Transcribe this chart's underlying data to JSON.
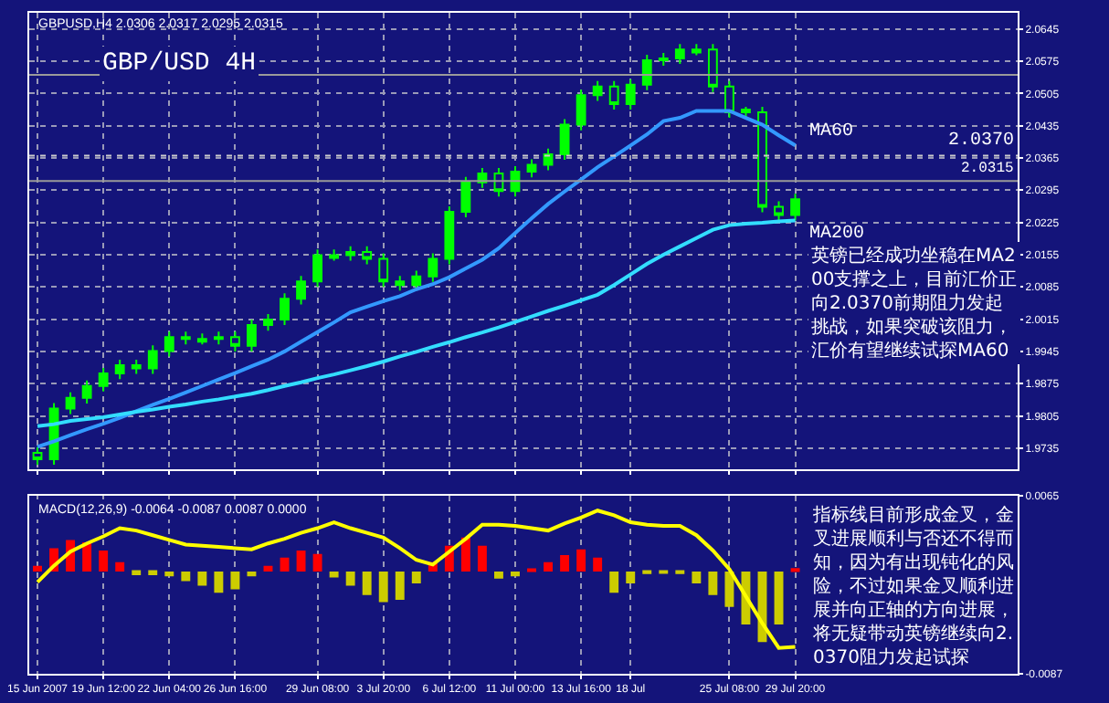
{
  "chart_data": [
    {
      "type": "candlestick",
      "title": "GBP/USD 4H",
      "tick_labels": "y",
      "grid": true,
      "color": "#00ff00",
      "categories": [
        null,
        null,
        null,
        null,
        null,
        null,
        null,
        null,
        null,
        null,
        null,
        null,
        null,
        null,
        null,
        null,
        null,
        null,
        null,
        null,
        null,
        null,
        null,
        null,
        null,
        null,
        null,
        null,
        null,
        null,
        null,
        null,
        null,
        null,
        null,
        null,
        null,
        null,
        null,
        null,
        null,
        null,
        null,
        null,
        null,
        null,
        null
      ],
      "ohlc": [
        [
          1.9725,
          1.9737,
          1.9699,
          1.9711
        ],
        [
          1.9711,
          1.9833,
          1.9699,
          1.9821
        ],
        [
          1.9821,
          1.9856,
          1.9809,
          1.9844
        ],
        [
          1.9844,
          1.9882,
          1.9832,
          1.987
        ],
        [
          1.987,
          1.9909,
          1.9858,
          1.9897
        ],
        [
          1.9897,
          1.9927,
          1.9885,
          1.9915
        ],
        [
          1.9915,
          1.9927,
          1.9896,
          1.9908
        ],
        [
          1.9908,
          1.9958,
          1.9896,
          1.9946
        ],
        [
          1.9946,
          1.9988,
          1.9934,
          1.9976
        ],
        [
          1.9976,
          1.9988,
          1.996,
          1.9972
        ],
        [
          1.9966,
          1.9984,
          1.996,
          1.9972
        ],
        [
          1.9972,
          1.9988,
          1.996,
          1.9976
        ],
        [
          1.9976,
          1.9988,
          1.9945,
          1.9957
        ],
        [
          1.9957,
          2.0014,
          1.9945,
          2.0002
        ],
        [
          2.0002,
          2.0026,
          1.999,
          2.0014
        ],
        [
          2.0014,
          2.0071,
          2.0002,
          2.0059
        ],
        [
          2.0059,
          2.0109,
          2.0047,
          2.0097
        ],
        [
          2.0097,
          2.0166,
          2.0085,
          2.0154
        ],
        [
          2.0148,
          2.0166,
          2.0142,
          2.0154
        ],
        [
          2.0154,
          2.0173,
          2.0142,
          2.0161
        ],
        [
          2.0161,
          2.0173,
          2.0134,
          2.0146
        ],
        [
          2.0146,
          2.0158,
          2.0085,
          2.0097
        ],
        [
          2.0097,
          2.0109,
          2.0077,
          2.0089
        ],
        [
          2.0089,
          2.012,
          2.0077,
          2.0108
        ],
        [
          2.0108,
          2.0158,
          2.0096,
          2.0146
        ],
        [
          2.0146,
          2.026,
          2.0134,
          2.0248
        ],
        [
          2.0248,
          2.0324,
          2.0236,
          2.0312
        ],
        [
          2.0312,
          2.0343,
          2.03,
          2.0331
        ],
        [
          2.0331,
          2.0343,
          2.0281,
          2.0293
        ],
        [
          2.0293,
          2.0347,
          2.0281,
          2.0335
        ],
        [
          2.0335,
          2.0362,
          2.0323,
          2.035
        ],
        [
          2.035,
          2.0385,
          2.0338,
          2.0373
        ],
        [
          2.0373,
          2.0449,
          2.0361,
          2.0437
        ],
        [
          2.0437,
          2.0513,
          2.0425,
          2.0501
        ],
        [
          2.0501,
          2.0532,
          2.0489,
          2.052
        ],
        [
          2.052,
          2.0532,
          2.047,
          2.0482
        ],
        [
          2.0482,
          2.0536,
          2.047,
          2.0524
        ],
        [
          2.0524,
          2.0589,
          2.0512,
          2.0577
        ],
        [
          2.0577,
          2.0593,
          2.0565,
          2.0581
        ],
        [
          2.0581,
          2.0612,
          2.0569,
          2.06
        ],
        [
          2.0594,
          2.0612,
          2.0588,
          2.06
        ],
        [
          2.06,
          2.0612,
          2.0508,
          2.052
        ],
        [
          2.052,
          2.0532,
          2.0452,
          2.0464
        ],
        [
          2.047,
          2.0476,
          2.0452,
          2.0464
        ],
        [
          2.0464,
          2.0476,
          2.0247,
          2.0259
        ],
        [
          2.0259,
          2.0271,
          2.0229,
          2.0241
        ],
        [
          2.0241,
          2.0287,
          2.0229,
          2.0275
        ]
      ],
      "series": [
        {
          "type": "line",
          "name": "MA60",
          "color": "#3399ff",
          "values": [
            1.9738,
            1.975,
            1.9763,
            1.9776,
            1.9788,
            1.9801,
            1.9815,
            1.9829,
            1.9842,
            1.9856,
            1.987,
            1.9884,
            1.9898,
            1.9913,
            1.9927,
            1.9945,
            1.9966,
            1.9987,
            2.0008,
            2.003,
            2.0042,
            2.0054,
            2.0065,
            2.008,
            2.0091,
            2.0106,
            2.0125,
            2.0144,
            2.0169,
            2.0202,
            2.0234,
            2.0265,
            2.0292,
            2.0318,
            2.0345,
            2.0368,
            2.0392,
            2.0416,
            2.0445,
            2.0452,
            2.0467,
            2.0467,
            2.0467,
            2.0452,
            2.0437,
            2.0414,
            2.0392
          ]
        },
        {
          "type": "line",
          "name": "MA200",
          "color": "#33ddff",
          "values": [
            1.9783,
            1.9787,
            1.9794,
            1.9798,
            1.9802,
            1.9808,
            1.9814,
            1.9819,
            1.9825,
            1.983,
            1.9836,
            1.9841,
            1.9847,
            1.9853,
            1.9861,
            1.987,
            1.9878,
            1.9887,
            1.9895,
            1.9904,
            1.9913,
            1.9923,
            1.9934,
            1.9944,
            1.9955,
            1.9965,
            1.9976,
            1.9986,
            1.9997,
            2.0009,
            2.0021,
            2.0033,
            2.0044,
            2.0056,
            2.0068,
            2.0089,
            2.0112,
            2.0135,
            2.0155,
            2.0173,
            2.0191,
            2.0209,
            2.0219,
            2.0222,
            2.0224,
            2.0227,
            2.0229
          ]
        }
      ],
      "ylim": [
        1.969,
        2.068
      ],
      "yticks": [
        1.9735,
        1.9805,
        1.9875,
        1.9945,
        2.0015,
        2.0085,
        2.0155,
        2.0225,
        2.0295,
        2.0365,
        2.0435,
        2.0505,
        2.0575,
        2.0645
      ],
      "ref_lines": [
        {
          "axis": "y",
          "value": 2.037,
          "label": "2.0370",
          "color": "#cccccc",
          "line_style": "dotted"
        },
        {
          "axis": "y",
          "value": 2.0315,
          "label": "2.0315",
          "color": "#9a9a9a",
          "line_style": "solid"
        },
        {
          "axis": "y",
          "value": 2.0545,
          "color": "#9a9a9a",
          "line_style": "solid"
        }
      ],
      "annotations": [
        "GBPUSD,H4 2.0306 2.0317 2.0295 2.0315",
        "英镑已经成功坐稳在MA200支撑之上，目前汇价正向2.0370前期阻力发起挑战，如果突破该阻力，汇价有望继续试探MA60",
        "指标线目前形成金叉，金叉进展顺利与否还不得而知，因为有出现钝化的风险，不过如果金叉顺利进展并向正轴的方向进展，将无疑带动英镑继续向2.0370阻力发起试探"
      ]
    },
    {
      "type": "bar",
      "title": "MACD(12,26,9) -0.0064 -0.0087 0.0087 0.0000",
      "grid": true,
      "categories": [
        "15 Jun 2007",
        null,
        null,
        null,
        "19 Jun 12:00",
        null,
        null,
        null,
        "22 Jun 04:00",
        null,
        null,
        null,
        "26 Jun 16:00",
        null,
        null,
        null,
        null,
        "29 Jun 08:00",
        null,
        null,
        null,
        "3 Jul 20:00",
        null,
        null,
        null,
        "6 Jul 12:00",
        null,
        null,
        null,
        "11 Jul 00:00",
        null,
        null,
        null,
        "13 Jul 16:00",
        null,
        null,
        "18 Jul",
        null,
        null,
        null,
        null,
        null,
        "25 Jul 08:00",
        null,
        null,
        null,
        "29 Jul 20:00"
      ],
      "series": [
        {
          "type": "bar",
          "values": [
            0.0005,
            0.002,
            0.0027,
            0.0025,
            0.0018,
            0.0008,
            -0.0003,
            -0.0003,
            -0.0004,
            -0.0008,
            -0.0012,
            -0.0018,
            -0.0015,
            -0.0004,
            0.0005,
            0.0012,
            0.0018,
            0.0015,
            -0.0005,
            -0.0012,
            -0.002,
            -0.0026,
            -0.0024,
            -0.001,
            0.0008,
            0.0022,
            0.0029,
            0.0022,
            -0.0006,
            -0.0004,
            0.0002,
            0.0008,
            0.0014,
            0.0019,
            0.0012,
            -0.0018,
            -0.001,
            -0.0002,
            -0.0001,
            -0.0002,
            -0.001,
            -0.002,
            -0.003,
            -0.0045,
            -0.006,
            -0.0045,
            0.0003
          ],
          "colors": [
            "#ff0000",
            "#ff0000",
            "#ff0000",
            "#ff0000",
            "#ff0000",
            "#ff0000",
            "#cccc00",
            "#cccc00",
            "#cccc00",
            "#cccc00",
            "#cccc00",
            "#cccc00",
            "#cccc00",
            "#cccc00",
            "#ff0000",
            "#ff0000",
            "#ff0000",
            "#ff0000",
            "#cccc00",
            "#cccc00",
            "#cccc00",
            "#cccc00",
            "#cccc00",
            "#cccc00",
            "#ff0000",
            "#ff0000",
            "#ff0000",
            "#ff0000",
            "#cccc00",
            "#cccc00",
            "#ff0000",
            "#ff0000",
            "#ff0000",
            "#ff0000",
            "#ff0000",
            "#cccc00",
            "#cccc00",
            "#cccc00",
            "#cccc00",
            "#cccc00",
            "#cccc00",
            "#cccc00",
            "#cccc00",
            "#cccc00",
            "#cccc00",
            "#cccc00",
            "#ff0000"
          ]
        },
        {
          "type": "line",
          "color": "#ffff00",
          "values": [
            -0.0009,
            0.0005,
            0.0017,
            0.0024,
            0.003,
            0.0037,
            0.0035,
            0.0031,
            0.0027,
            0.0023,
            0.0022,
            0.0021,
            0.002,
            0.0019,
            0.0024,
            0.0028,
            0.0033,
            0.0037,
            0.0042,
            0.0037,
            0.0033,
            0.0029,
            0.002,
            0.001,
            0.0006,
            0.0017,
            0.0028,
            0.004,
            0.004,
            0.0039,
            0.0037,
            0.0035,
            0.0041,
            0.0046,
            0.0052,
            0.0048,
            0.0042,
            0.004,
            0.0039,
            0.0039,
            0.0031,
            0.0018,
            0.0002,
            -0.0021,
            -0.0044,
            -0.0065,
            -0.0064
          ]
        }
      ],
      "ylim": [
        -0.0087,
        0.0065
      ],
      "yticks": [
        -0.0087,
        0.0065
      ]
    }
  ]
}
